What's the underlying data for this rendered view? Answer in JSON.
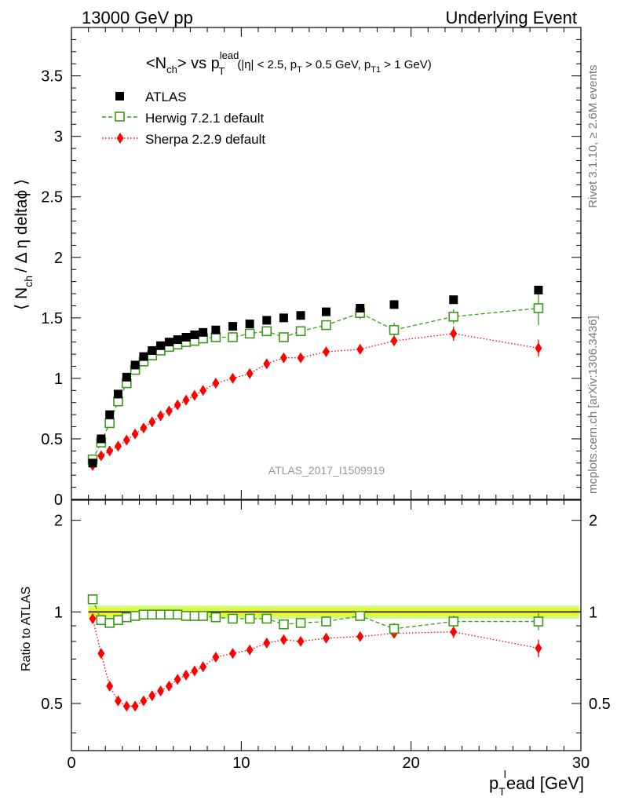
{
  "header": {
    "left": "13000 GeV pp",
    "right": "Underlying Event"
  },
  "side_labels": {
    "rivet": "Rivet 3.1.10, ≥ 2.6M events",
    "mcplots": "mcplots.cern.ch [arXiv:1306.3436]"
  },
  "watermark": "ATLAS_2017_I1509919",
  "colors": {
    "atlas": "#000000",
    "herwig": "#3a9a18",
    "sherpa": "#ff0000",
    "band_inner": "#e8f533",
    "band_outer": "#ccff88"
  },
  "chart_data": [
    {
      "type": "scatter",
      "title_main": "<N",
      "title_sub1": "ch",
      "title_mid": "> vs p",
      "title_sup": "lead",
      "title_sub2": "T",
      "title_cuts_a": "(|η| < 2.5, p",
      "title_cuts_b": "T",
      "title_cuts_c": " > 0.5 GeV, p",
      "title_cuts_d": "T1",
      "title_cuts_e": " > 1 GeV)",
      "ylabel_a": "⟨ N",
      "ylabel_b": "ch",
      "ylabel_c": "/ Δ η deltaϕ ⟩",
      "xlim": [
        0,
        30
      ],
      "ylim": [
        0,
        3.9
      ],
      "yticks": [
        "0",
        "0.5",
        "1",
        "1.5",
        "2",
        "2.5",
        "3",
        "3.5"
      ],
      "legend_position": "top-left",
      "series": [
        {
          "name": "ATLAS",
          "marker": "filled-square",
          "x": [
            1.25,
            1.75,
            2.25,
            2.75,
            3.25,
            3.75,
            4.25,
            4.75,
            5.25,
            5.75,
            6.25,
            6.75,
            7.25,
            7.75,
            8.5,
            9.5,
            10.5,
            11.5,
            12.5,
            13.5,
            15.0,
            17.0,
            19.0,
            22.5,
            27.5
          ],
          "y": [
            0.3,
            0.5,
            0.7,
            0.87,
            1.01,
            1.11,
            1.18,
            1.23,
            1.27,
            1.3,
            1.32,
            1.34,
            1.36,
            1.38,
            1.4,
            1.43,
            1.45,
            1.48,
            1.5,
            1.52,
            1.55,
            1.58,
            1.61,
            1.65,
            1.73
          ]
        },
        {
          "name": "Herwig 7.2.1 default",
          "marker": "open-square",
          "x": [
            1.25,
            1.75,
            2.25,
            2.75,
            3.25,
            3.75,
            4.25,
            4.75,
            5.25,
            5.75,
            6.25,
            6.75,
            7.25,
            7.75,
            8.5,
            9.5,
            10.5,
            11.5,
            12.5,
            13.5,
            15.0,
            17.0,
            19.0,
            22.5,
            27.5
          ],
          "y": [
            0.33,
            0.47,
            0.63,
            0.81,
            0.96,
            1.07,
            1.14,
            1.19,
            1.23,
            1.26,
            1.28,
            1.3,
            1.31,
            1.33,
            1.34,
            1.34,
            1.37,
            1.39,
            1.34,
            1.39,
            1.44,
            1.54,
            1.4,
            1.51,
            1.58
          ],
          "yerr": [
            0,
            0,
            0,
            0,
            0,
            0,
            0,
            0,
            0,
            0,
            0,
            0,
            0,
            0,
            0,
            0,
            0,
            0,
            0,
            0,
            0,
            0.05,
            0.06,
            0.06,
            0.14
          ]
        },
        {
          "name": "Sherpa 2.2.9 default",
          "marker": "filled-diamond",
          "x": [
            1.25,
            1.75,
            2.25,
            2.75,
            3.25,
            3.75,
            4.25,
            4.75,
            5.25,
            5.75,
            6.25,
            6.75,
            7.25,
            7.75,
            8.5,
            9.5,
            10.5,
            11.5,
            12.5,
            13.5,
            15.0,
            17.0,
            19.0,
            22.5,
            27.5
          ],
          "y": [
            0.28,
            0.36,
            0.4,
            0.44,
            0.49,
            0.54,
            0.59,
            0.64,
            0.69,
            0.73,
            0.78,
            0.82,
            0.86,
            0.9,
            0.96,
            1.0,
            1.04,
            1.12,
            1.17,
            1.17,
            1.22,
            1.24,
            1.31,
            1.37,
            1.25
          ],
          "yerr": [
            0,
            0,
            0,
            0,
            0,
            0,
            0,
            0,
            0,
            0,
            0,
            0,
            0,
            0,
            0,
            0,
            0,
            0,
            0,
            0,
            0,
            0,
            0.04,
            0.06,
            0.07
          ]
        }
      ]
    },
    {
      "type": "scatter",
      "ylabel": "Ratio to ATLAS",
      "xlabel_a": "p",
      "xlabel_b": "T",
      "xlabel_sup": "l",
      "xlabel_c": "ead [GeV]",
      "xlim": [
        0,
        30
      ],
      "ylim": [
        0.35,
        2.33
      ],
      "y_log_scale": true,
      "yticks": [
        "0.5",
        "1",
        "2"
      ],
      "xticks": [
        "0",
        "10",
        "20",
        "30"
      ],
      "band": {
        "x": [
          1,
          29.9
        ],
        "lo": 0.97,
        "hi": 1.03
      },
      "series": [
        {
          "name": "Herwig 7.2.1 default",
          "x": [
            1.25,
            1.75,
            2.25,
            2.75,
            3.25,
            3.75,
            4.25,
            4.75,
            5.25,
            5.75,
            6.25,
            6.75,
            7.25,
            7.75,
            8.5,
            9.5,
            10.5,
            11.5,
            12.5,
            13.5,
            15.0,
            17.0,
            19.0,
            22.5,
            27.5
          ],
          "y": [
            1.1,
            0.94,
            0.92,
            0.94,
            0.96,
            0.97,
            0.98,
            0.98,
            0.98,
            0.98,
            0.98,
            0.97,
            0.97,
            0.97,
            0.96,
            0.95,
            0.95,
            0.95,
            0.91,
            0.92,
            0.93,
            0.97,
            0.88,
            0.93,
            0.93
          ],
          "yerr": [
            0,
            0,
            0,
            0,
            0,
            0,
            0,
            0,
            0,
            0,
            0,
            0,
            0,
            0,
            0,
            0,
            0,
            0,
            0,
            0,
            0,
            0.03,
            0.04,
            0.04,
            0.06
          ]
        },
        {
          "name": "Sherpa 2.2.9 default",
          "x": [
            1.25,
            1.75,
            2.25,
            2.75,
            3.25,
            3.75,
            4.25,
            4.75,
            5.25,
            5.75,
            6.25,
            6.75,
            7.25,
            7.75,
            8.5,
            9.5,
            10.5,
            11.5,
            12.5,
            13.5,
            15.0,
            17.0,
            19.0,
            22.5,
            27.5
          ],
          "y": [
            0.95,
            0.73,
            0.57,
            0.51,
            0.49,
            0.49,
            0.51,
            0.53,
            0.55,
            0.57,
            0.6,
            0.62,
            0.64,
            0.66,
            0.71,
            0.73,
            0.75,
            0.79,
            0.81,
            0.8,
            0.82,
            0.83,
            0.85,
            0.86,
            0.76
          ],
          "yerr": [
            0,
            0,
            0,
            0,
            0,
            0,
            0,
            0,
            0,
            0,
            0,
            0,
            0,
            0,
            0,
            0,
            0,
            0,
            0,
            0,
            0,
            0.02,
            0.03,
            0.04,
            0.05
          ]
        }
      ]
    }
  ]
}
